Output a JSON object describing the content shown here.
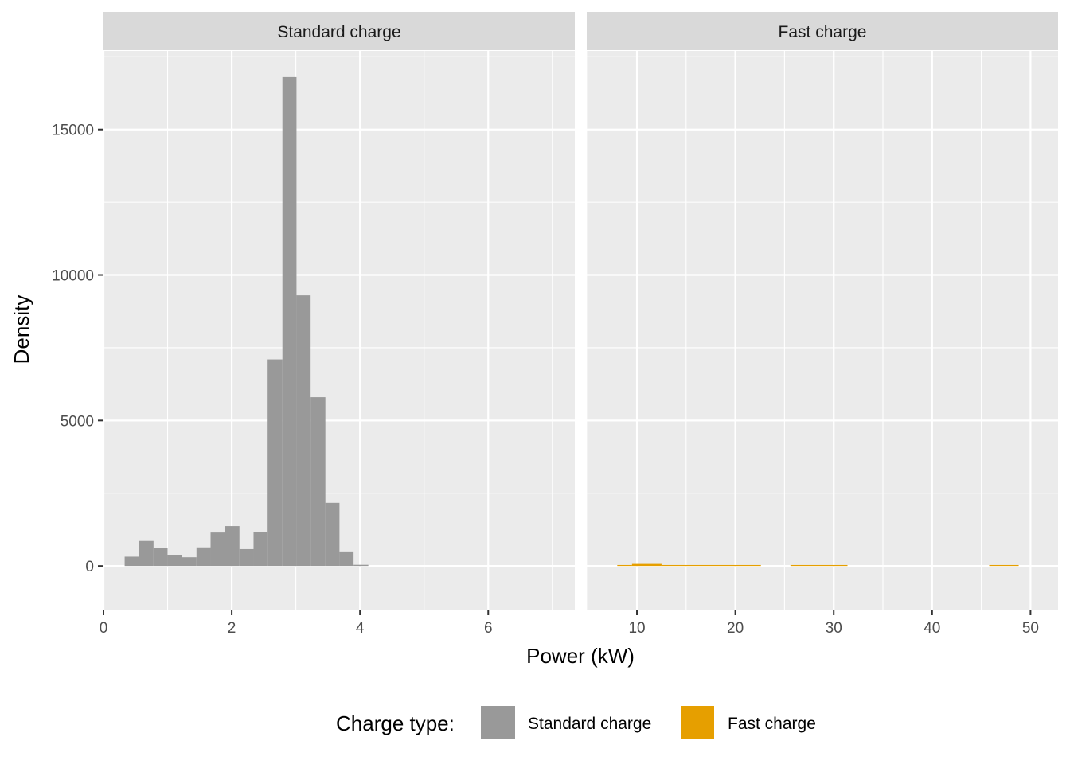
{
  "chart_data": {
    "type": "bar",
    "subtype": "faceted-histogram",
    "ylabel": "Density",
    "xlabel": "Power (kW)",
    "grid": true,
    "legend_position": "bottom",
    "yaxis": {
      "lim": [
        -1500,
        17700
      ],
      "breaks": [
        0,
        5000,
        10000,
        15000
      ],
      "tick_labels": [
        "0",
        "5000",
        "10000",
        "15000"
      ]
    },
    "legend": {
      "title": "Charge type:",
      "entries": [
        {
          "label": "Standard charge",
          "color": "#999999"
        },
        {
          "label": "Fast charge",
          "color": "#E69F00"
        }
      ]
    },
    "facets": [
      {
        "strip": "Standard charge",
        "color": "#999999",
        "xlim": [
          0,
          7.35
        ],
        "xbreaks": [
          0,
          2,
          4,
          6
        ],
        "xtick_labels": [
          "0",
          "2",
          "4",
          "6"
        ],
        "bins": [
          {
            "x0": 0.33,
            "x1": 0.55,
            "y": 320
          },
          {
            "x0": 0.55,
            "x1": 0.78,
            "y": 860
          },
          {
            "x0": 0.78,
            "x1": 1.0,
            "y": 620
          },
          {
            "x0": 1.0,
            "x1": 1.22,
            "y": 360
          },
          {
            "x0": 1.22,
            "x1": 1.45,
            "y": 300
          },
          {
            "x0": 1.45,
            "x1": 1.67,
            "y": 640
          },
          {
            "x0": 1.67,
            "x1": 1.89,
            "y": 1150
          },
          {
            "x0": 1.89,
            "x1": 2.12,
            "y": 1370
          },
          {
            "x0": 2.12,
            "x1": 2.34,
            "y": 580
          },
          {
            "x0": 2.34,
            "x1": 2.56,
            "y": 1170
          },
          {
            "x0": 2.56,
            "x1": 2.79,
            "y": 7100
          },
          {
            "x0": 2.79,
            "x1": 3.01,
            "y": 16800
          },
          {
            "x0": 3.01,
            "x1": 3.23,
            "y": 9300
          },
          {
            "x0": 3.23,
            "x1": 3.46,
            "y": 5800
          },
          {
            "x0": 3.46,
            "x1": 3.68,
            "y": 2170
          },
          {
            "x0": 3.68,
            "x1": 3.9,
            "y": 500
          },
          {
            "x0": 3.9,
            "x1": 4.13,
            "y": 40
          }
        ]
      },
      {
        "strip": "Fast charge",
        "color": "#E69F00",
        "xlim": [
          4.9,
          52.8
        ],
        "xbreaks": [
          10,
          20,
          30,
          40,
          50
        ],
        "xtick_labels": [
          "10",
          "20",
          "30",
          "40",
          "50"
        ],
        "bins": [
          {
            "x0": 8.0,
            "x1": 9.5,
            "y": 25
          },
          {
            "x0": 9.5,
            "x1": 12.5,
            "y": 70
          },
          {
            "x0": 12.5,
            "x1": 22.6,
            "y": 30
          },
          {
            "x0": 25.6,
            "x1": 31.4,
            "y": 30
          },
          {
            "x0": 45.8,
            "x1": 48.8,
            "y": 25
          }
        ]
      }
    ]
  }
}
